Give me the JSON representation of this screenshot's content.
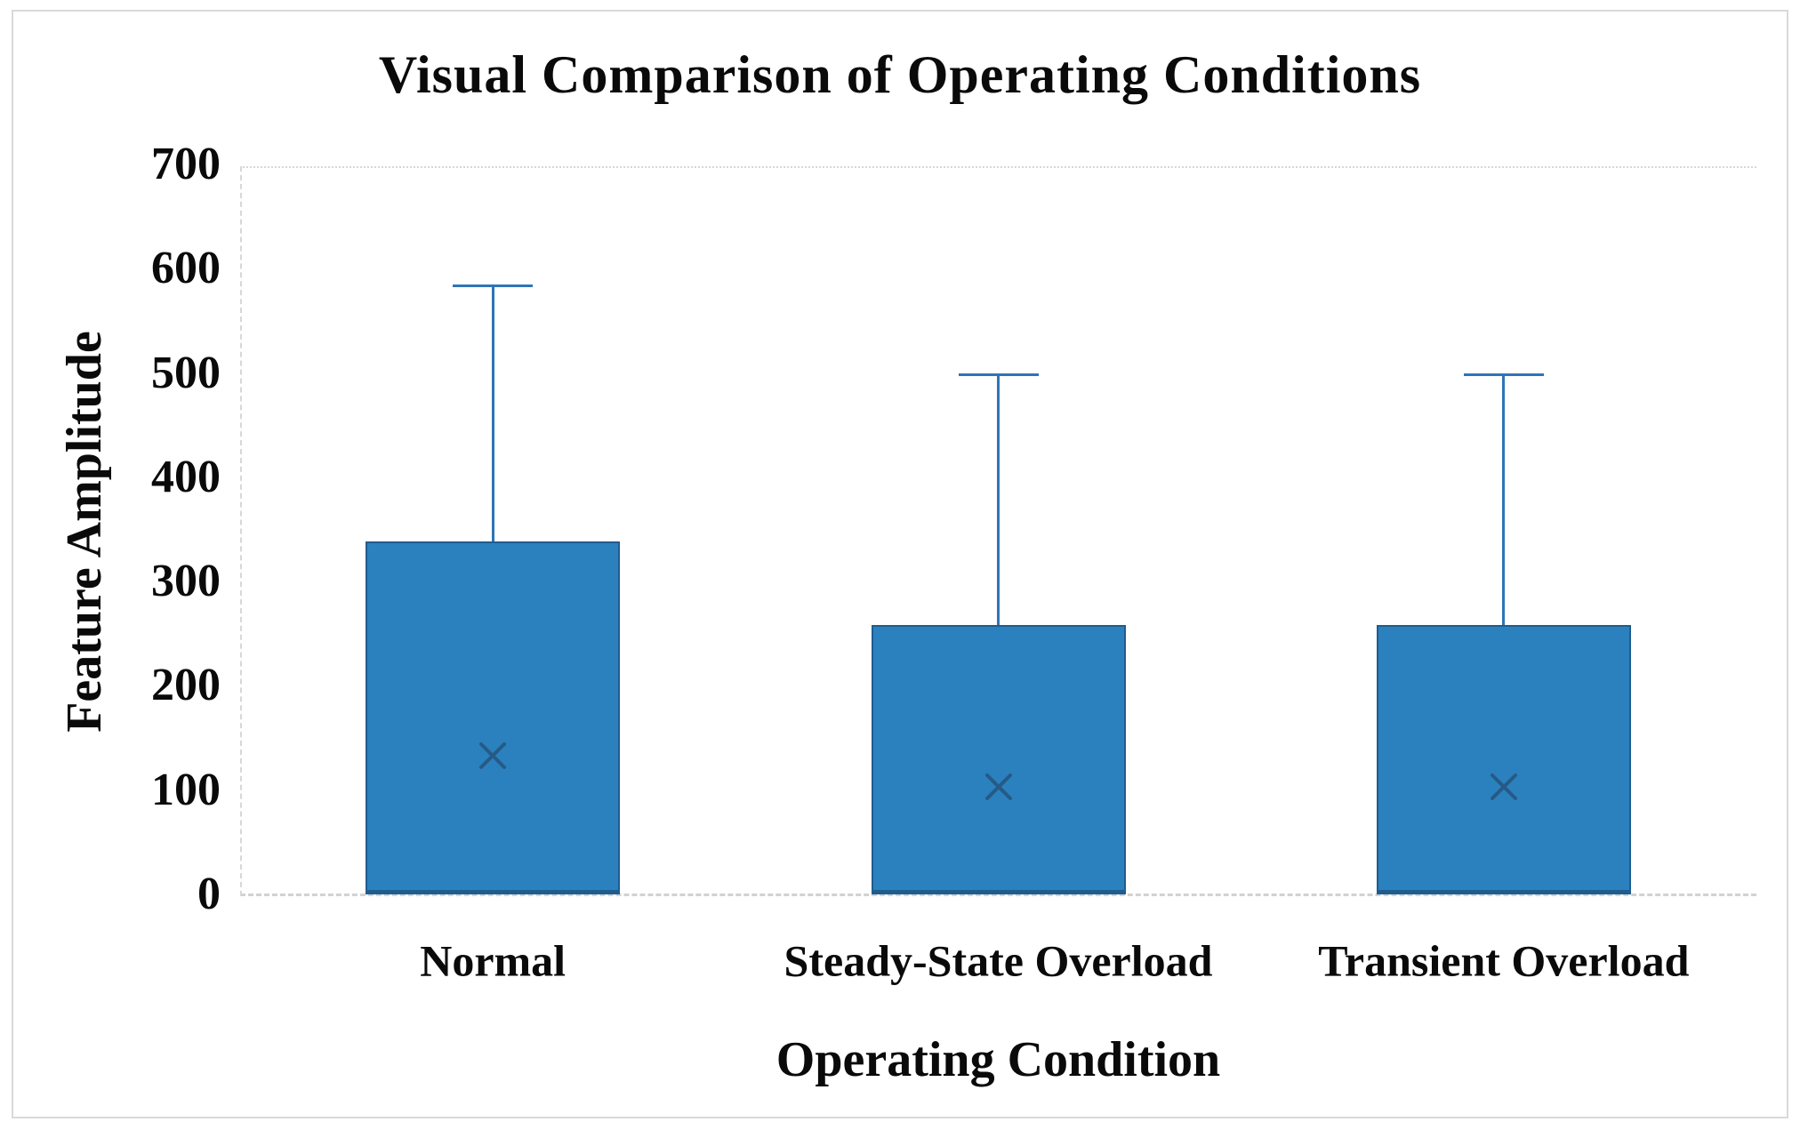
{
  "chart_data": {
    "type": "box-whisker",
    "title": "Visual Comparison of Operating Conditions",
    "xlabel": "Operating Condition",
    "ylabel": "Feature Amplitude",
    "ylim": [
      0,
      700
    ],
    "yticks": [
      700,
      600,
      500,
      400,
      300,
      200,
      100,
      0
    ],
    "grid": "off",
    "legend": "none",
    "categories": [
      "Normal",
      "Steady-State Overload",
      "Transient Overload"
    ],
    "series": [
      {
        "category": "Normal",
        "box_bottom": 0,
        "median": 5,
        "box_top": 340,
        "whisker_high": 585,
        "mean": 135
      },
      {
        "category": "Steady-State Overload",
        "box_bottom": 0,
        "median": 5,
        "box_top": 260,
        "whisker_high": 500,
        "mean": 105
      },
      {
        "category": "Transient Overload",
        "box_bottom": 0,
        "median": 5,
        "box_top": 260,
        "whisker_high": 500,
        "mean": 105
      }
    ],
    "mean_marker": "x",
    "colors": {
      "box_fill": "#2B81BE",
      "box_border": "#1F5C8F",
      "whisker": "#2E75B6",
      "mean_marker": "#265A86",
      "axis_line": "#D7D7D7",
      "frame": "#D9D9D9",
      "text": "#0A0A0A"
    }
  }
}
